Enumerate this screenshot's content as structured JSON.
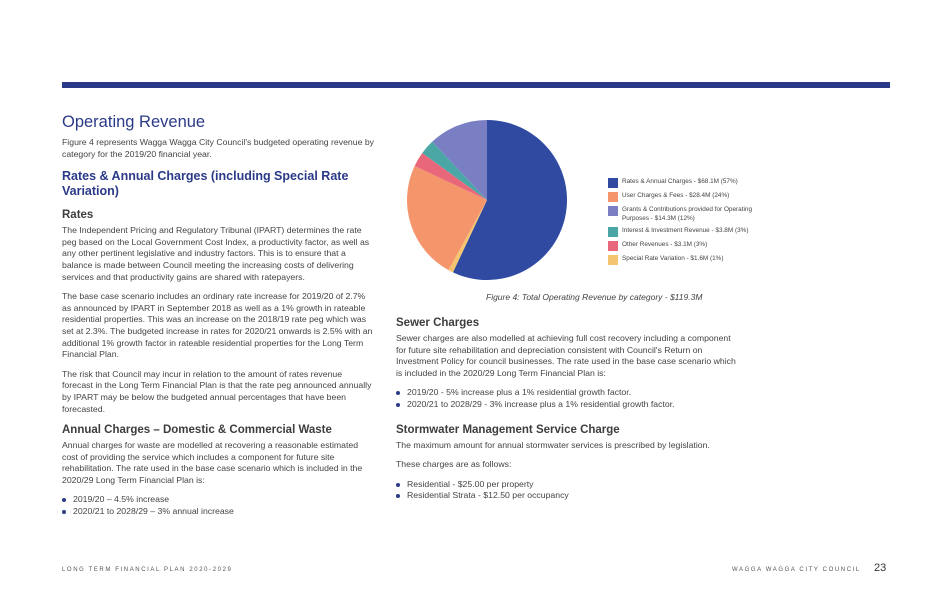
{
  "page": {
    "title": "Operating Revenue",
    "intro": "Figure 4 represents Wagga Wagga City Council's budgeted operating revenue by category for the 2019/20 financial year.",
    "rates_section": {
      "heading": "Rates & Annual Charges (including Special Rate Variation)",
      "subheading": "Rates",
      "paragraphs": [
        "The Independent Pricing and Regulatory Tribunal (IPART) determines the rate peg based on the Local Government Cost Index, a productivity factor, as well as any other pertinent legislative and industry factors. This is to ensure that a balance is made between Council meeting the increasing costs of delivering services and that productivity gains are shared with ratepayers.",
        "The base case scenario includes an ordinary rate increase for 2019/20 of 2.7% as announced by IPART in September 2018 as well as a 1% growth in rateable residential properties. This was an increase on the 2018/19 rate peg which was set at 2.3%. The budgeted increase in rates for 2020/21 onwards is 2.5% with an additional 1% growth factor in rateable residential properties for the Long Term Financial Plan.",
        "The risk that Council may incur in relation to the amount of rates revenue forecast in the Long Term Financial Plan is that the rate peg announced annually by IPART may be below the budgeted annual percentages that have been forecasted."
      ]
    },
    "waste_section": {
      "heading": "Annual Charges – Domestic & Commercial Waste",
      "paragraph": "Annual charges for waste are modelled at recovering a reasonable estimated cost of providing the service which includes a component for future site rehabilitation. The rate used in the base case scenario which is included in the 2020/29 Long Term Financial Plan is:",
      "bullets": [
        "2019/20 – 4.5% increase",
        "2020/21 to 2028/29 – 3% annual increase"
      ]
    },
    "sewer_section": {
      "heading": "Sewer Charges",
      "paragraph": "Sewer charges are also modelled at achieving full cost recovery including a component for future site rehabilitation and depreciation consistent with Council's Return on Investment Policy for council businesses. The rate used in the base case scenario which is included in the 2020/29 Long Term Financial Plan is:",
      "bullets": [
        "2019/20 - 5% increase plus a 1% residential growth factor.",
        "2020/21 to 2028/29 - 3% increase plus a 1% residential growth factor."
      ]
    },
    "stormwater_section": {
      "heading": "Stormwater Management Service Charge",
      "paragraphs": [
        "The maximum amount for annual stormwater services is prescribed by legislation.",
        "These charges are as follows:"
      ],
      "bullets": [
        "Residential - $25.00 per property",
        "Residential Strata - $12.50 per occupancy"
      ]
    },
    "figure_caption": "Figure 4: Total Operating Revenue by category - $119.3M",
    "footer": {
      "left": "LONG TERM FINANCIAL PLAN 2020-2029",
      "right": "WAGGA WAGGA CITY COUNCIL",
      "page_number": "23"
    }
  },
  "chart_data": {
    "type": "pie",
    "title": "",
    "series": [
      {
        "label": "Rates & Annual Charges - $68.1M (57%)",
        "value": 57,
        "color": "#2f4aa0"
      },
      {
        "label": "Special Rate Variation - $1.6M (1%)",
        "value": 1,
        "color": "#f5c46e"
      },
      {
        "label": "User Charges & Fees - $28.4M (24%)",
        "value": 24,
        "color": "#f4956b"
      },
      {
        "label": "Other Revenues - $3.1M (3%)",
        "value": 3,
        "color": "#e8677a"
      },
      {
        "label": "Interest & Investment Revenue - $3.8M (3%)",
        "value": 3,
        "color": "#4ba6a6"
      },
      {
        "label": "Grants & Contributions provided for Operating Purposes - $14.3M (12%)",
        "value": 12,
        "color": "#7a7fc4"
      }
    ],
    "legend": [
      {
        "label": "Rates & Annual Charges - $68.1M (57%)",
        "color": "#2f4aa0"
      },
      {
        "label": "User Charges & Fees - $28.4M (24%)",
        "color": "#f4956b"
      },
      {
        "label": "Grants & Contributions provided for Operating Purposes - $14.3M (12%)",
        "color": "#7a7fc4"
      },
      {
        "label": "Interest & Investment Revenue - $3.8M (3%)",
        "color": "#4ba6a6"
      },
      {
        "label": "Other Revenues - $3.1M (3%)",
        "color": "#e8677a"
      },
      {
        "label": "Special Rate Variation - $1.6M (1%)",
        "color": "#f5c46e"
      }
    ],
    "legend_position": "right"
  }
}
